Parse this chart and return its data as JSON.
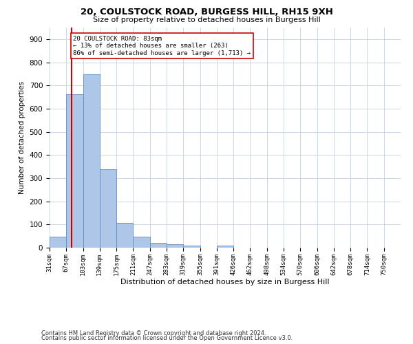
{
  "title_line1": "20, COULSTOCK ROAD, BURGESS HILL, RH15 9XH",
  "title_line2": "Size of property relative to detached houses in Burgess Hill",
  "xlabel": "Distribution of detached houses by size in Burgess Hill",
  "ylabel": "Number of detached properties",
  "footnote1": "Contains HM Land Registry data © Crown copyright and database right 2024.",
  "footnote2": "Contains public sector information licensed under the Open Government Licence v3.0.",
  "categories": [
    "31sqm",
    "67sqm",
    "103sqm",
    "139sqm",
    "175sqm",
    "211sqm",
    "247sqm",
    "283sqm",
    "319sqm",
    "355sqm",
    "391sqm",
    "426sqm",
    "462sqm",
    "498sqm",
    "534sqm",
    "570sqm",
    "606sqm",
    "642sqm",
    "678sqm",
    "714sqm",
    "750sqm"
  ],
  "values": [
    48,
    662,
    748,
    338,
    107,
    48,
    22,
    14,
    10,
    0,
    8,
    0,
    0,
    0,
    0,
    0,
    0,
    0,
    0,
    0,
    0
  ],
  "bar_color": "#aec6e8",
  "bar_edge_color": "#5a8fc2",
  "property_size_bin": 1,
  "property_label": "20 COULSTOCK ROAD: 83sqm",
  "annotation_line1": "← 13% of detached houses are smaller (263)",
  "annotation_line2": "86% of semi-detached houses are larger (1,713) →",
  "vline_color": "#cc0000",
  "annotation_box_color": "#ffffff",
  "annotation_box_edge": "#cc0000",
  "ylim": [
    0,
    950
  ],
  "yticks": [
    0,
    100,
    200,
    300,
    400,
    500,
    600,
    700,
    800,
    900
  ],
  "bg_color": "#ffffff",
  "grid_color": "#c8d8e8",
  "n_bins": 21
}
